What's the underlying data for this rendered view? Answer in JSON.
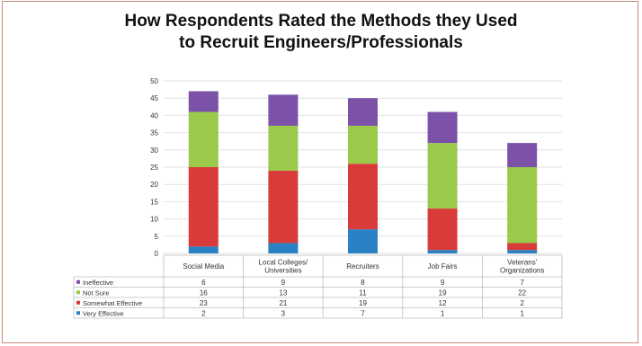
{
  "chart_data": {
    "type": "bar",
    "stacked": true,
    "title_lines": [
      "How Respondents Rated the Methods they Used",
      "to Recruit Engineers/Professionals"
    ],
    "categories": [
      [
        "Social Media"
      ],
      [
        "Local Colleges/",
        "Universities"
      ],
      [
        "Recruiters"
      ],
      [
        "Job Fairs"
      ],
      [
        "Veterans'",
        "Organizations"
      ]
    ],
    "ylim": [
      0,
      50
    ],
    "yticks": [
      0,
      5,
      10,
      15,
      20,
      25,
      30,
      35,
      40,
      45,
      50
    ],
    "grid": true,
    "legend": "data-table-below",
    "series": [
      {
        "name": "Very Effective",
        "color": "#2a82c4",
        "values": [
          2,
          3,
          7,
          1,
          1
        ]
      },
      {
        "name": "Somewhat Effective",
        "color": "#d93a3a",
        "values": [
          23,
          21,
          19,
          12,
          2
        ]
      },
      {
        "name": "Not Sure",
        "color": "#9bc94a",
        "values": [
          16,
          13,
          11,
          19,
          22
        ]
      },
      {
        "name": "Ineffective",
        "color": "#7b52a8",
        "values": [
          6,
          9,
          8,
          9,
          7
        ]
      }
    ],
    "table_row_order": [
      3,
      2,
      1,
      0
    ]
  }
}
